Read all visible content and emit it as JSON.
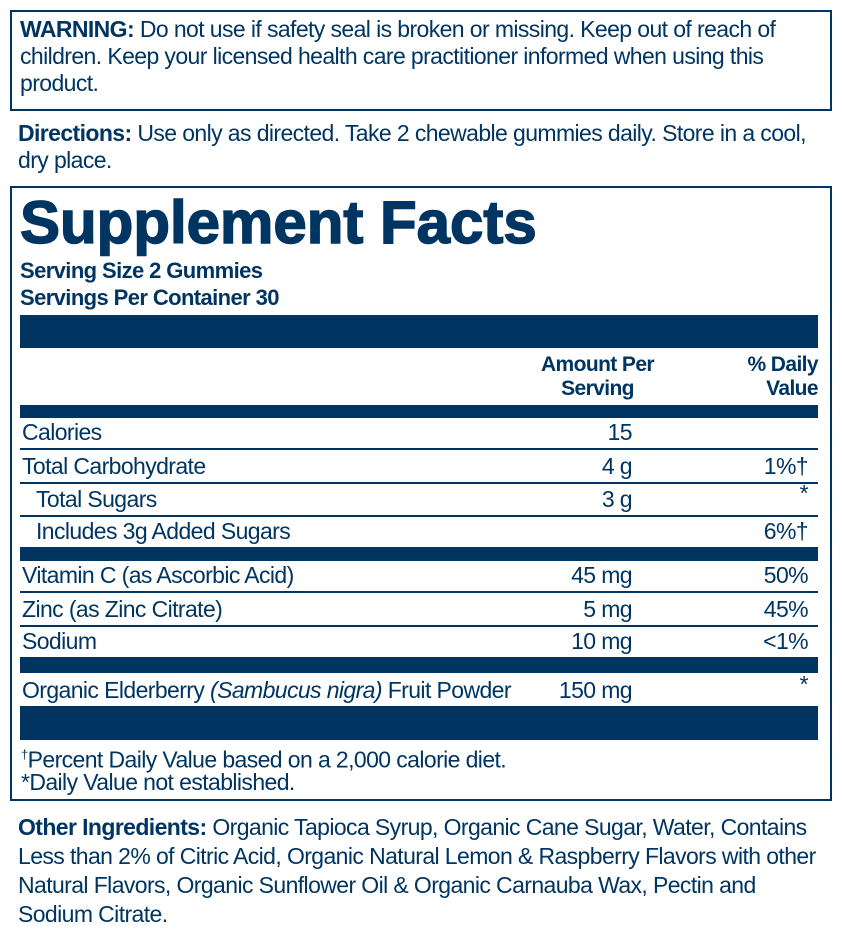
{
  "warning": {
    "label": "WARNING:",
    "text": " Do not use if safety seal is broken or missing. Keep out of reach of children. Keep your licensed health care practitioner informed when using this product."
  },
  "directions": {
    "label": "Directions:",
    "text": " Use only as directed. Take 2 chewable gummies daily. Store in a cool, dry place."
  },
  "facts": {
    "title": "Supplement Facts",
    "serving_size": "Serving Size 2 Gummies",
    "servings_per_container": "Servings Per Container 30",
    "col_amount": [
      "Amount Per",
      "Serving"
    ],
    "col_dv": [
      "% Daily",
      "Value"
    ],
    "rows": [
      {
        "name": "Calories",
        "amount": "15",
        "dv": ""
      },
      {
        "name": "Total Carbohydrate",
        "amount": "4 g",
        "dv": "1%†"
      },
      {
        "name": "Total Sugars",
        "amount": "3 g",
        "dv": "*"
      },
      {
        "name": "Includes 3g Added Sugars",
        "amount": "",
        "dv": "6%†"
      },
      {
        "name": "Vitamin C (as Ascorbic Acid)",
        "amount": "45 mg",
        "dv": "50%"
      },
      {
        "name": "Zinc (as Zinc Citrate)",
        "amount": "5 mg",
        "dv": "45%"
      },
      {
        "name": "Sodium",
        "amount": "10 mg",
        "dv": "<1%"
      }
    ],
    "elderberry": {
      "pre": "Organic Elderberry ",
      "italic": "(Sambucus nigra)",
      "post": " Fruit Powder",
      "amount": "150 mg",
      "dv": "*"
    },
    "footnote_dagger_mark": "†",
    "footnote_dagger": "Percent Daily Value based on a 2,000 calorie diet.",
    "footnote_star": "*Daily Value not established."
  },
  "other": {
    "label": "Other Ingredients:",
    "text": " Organic Tapioca Syrup, Organic Cane Sugar, Water, Contains Less than 2% of Citric Acid, Organic Natural Lemon & Raspberry Flavors with other Natural Flavors, Organic Sunflower Oil & Organic Carnauba Wax, Pectin and Sodium Citrate."
  },
  "colors": {
    "brand": "#003562"
  }
}
